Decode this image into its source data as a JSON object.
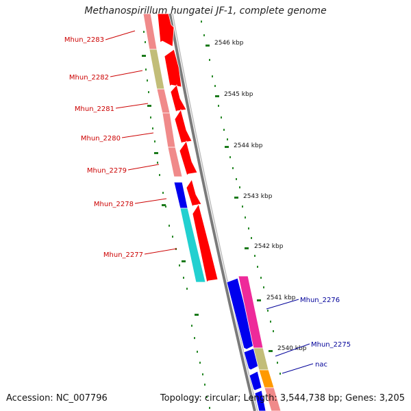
{
  "title": "Methanospirillum hungatei JF-1, complete genome",
  "footer": {
    "accession": "Accession: NC_007796",
    "summary": "Topology: circular; Length: 3,544,738 bp; Genes: 3,205"
  },
  "ticks": [
    "2546 kbp",
    "2545 kbp",
    "2544 kbp",
    "2543 kbp",
    "2542 kbp",
    "2541 kbp",
    "2540 kbp"
  ],
  "left_genes": [
    "Mhun_2283",
    "Mhun_2282",
    "Mhun_2281",
    "Mhun_2280",
    "Mhun_2279",
    "Mhun_2278",
    "Mhun_2277"
  ],
  "right_genes": [
    "Mhun_2276",
    "Mhun_2275",
    "nac"
  ],
  "colors": {
    "forward_gene": "#ff0000",
    "reverse_gene": "#0000ee",
    "left_label": "#cc0000",
    "right_label": "#000099",
    "tick_mark": "#1a7a1a",
    "backbone": "#888888",
    "cog_salmon": "#f08a8a",
    "cog_olive": "#c2bd78",
    "cog_cyan": "#22d0d0",
    "cog_magenta": "#ee2a9a",
    "cog_orange": "#ff9900"
  }
}
